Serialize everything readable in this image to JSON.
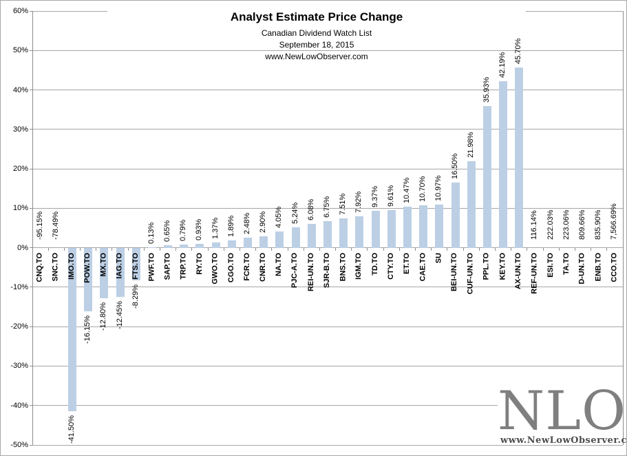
{
  "header": {
    "title": "Analyst Estimate Price Change",
    "subtitle": "Canadian Dividend Watch List",
    "date": "September 18, 2015",
    "website": "www.NewLowObserver.com"
  },
  "logo": {
    "text": "NLO",
    "website": "www.NewLowObserver.com"
  },
  "colors": {
    "bar": "#bccfe5",
    "gridline": "#a6a6a6",
    "axis": "#8c8c8c",
    "logo_text": "#7f7f7f",
    "logo_url": "#4d4d4d",
    "label_text": "#000000"
  },
  "chart_data": {
    "type": "bar",
    "title": "Analyst Estimate Price Change",
    "subtitle": "Canadian Dividend Watch List",
    "date": "September 18, 2015",
    "source": "www.NewLowObserver.com",
    "xlabel": "",
    "ylabel": "",
    "ylim": [
      -50,
      60
    ],
    "ytick_step": 10,
    "yticks": [
      "60%",
      "50%",
      "40%",
      "30%",
      "20%",
      "10%",
      "0%",
      "-10%",
      "-20%",
      "-30%",
      "-40%",
      "-50%"
    ],
    "grid": true,
    "legend": false,
    "note": "bars whose value falls outside ylim are not drawn; only their data label is shown next to the zero axis",
    "categories": [
      "CNQ.TO",
      "SNC.TO",
      "IMO.TO",
      "POW.TO",
      "MX.TO",
      "IAG.TO",
      "FTS.TO",
      "PWF.TO",
      "SAP.TO",
      "TRP.TO",
      "RY.TO",
      "GWO.TO",
      "CGO.TO",
      "FCR.TO",
      "CNR.TO",
      "NA.TO",
      "PJC-A.TO",
      "REI-UN.TO",
      "SJR-B.TO",
      "BNS.TO",
      "IGM.TO",
      "TD.TO",
      "CTY.TO",
      "ET.TO",
      "CAE.TO",
      "SU",
      "BEI-UN.TO",
      "CUF-UN.TO",
      "PPL.TO",
      "KEY.TO",
      "AX-UN.TO",
      "REF-UN.TO",
      "ESI.TO",
      "TA.TO",
      "D-UN.TO",
      "ENB.TO",
      "CCO.TO"
    ],
    "values": [
      -95.15,
      -78.49,
      -41.5,
      -16.15,
      -12.8,
      -12.45,
      -8.29,
      0.13,
      0.65,
      0.79,
      0.93,
      1.37,
      1.89,
      2.48,
      2.9,
      4.05,
      5.24,
      6.08,
      6.75,
      7.51,
      7.92,
      9.37,
      9.61,
      10.47,
      10.7,
      10.97,
      16.5,
      21.98,
      35.93,
      42.19,
      45.7,
      116.14,
      222.03,
      223.06,
      809.66,
      835.9,
      7566.69
    ],
    "value_labels": [
      "-95.15%",
      "-78.49%",
      "-41.50%",
      "-16.15%",
      "-12.80%",
      "-12.45%",
      "-8.29%",
      "0.13%",
      "0.65%",
      "0.79%",
      "0.93%",
      "1.37%",
      "1.89%",
      "2.48%",
      "2.90%",
      "4.05%",
      "5.24%",
      "6.08%",
      "6.75%",
      "7.51%",
      "7.92%",
      "9.37%",
      "9.61%",
      "10.47%",
      "10.70%",
      "10.97%",
      "16.50%",
      "21.98%",
      "35.93%",
      "42.19%",
      "45.70%",
      "116.14%",
      "222.03%",
      "223.06%",
      "809.66%",
      "835.90%",
      "7,566.69%"
    ]
  }
}
